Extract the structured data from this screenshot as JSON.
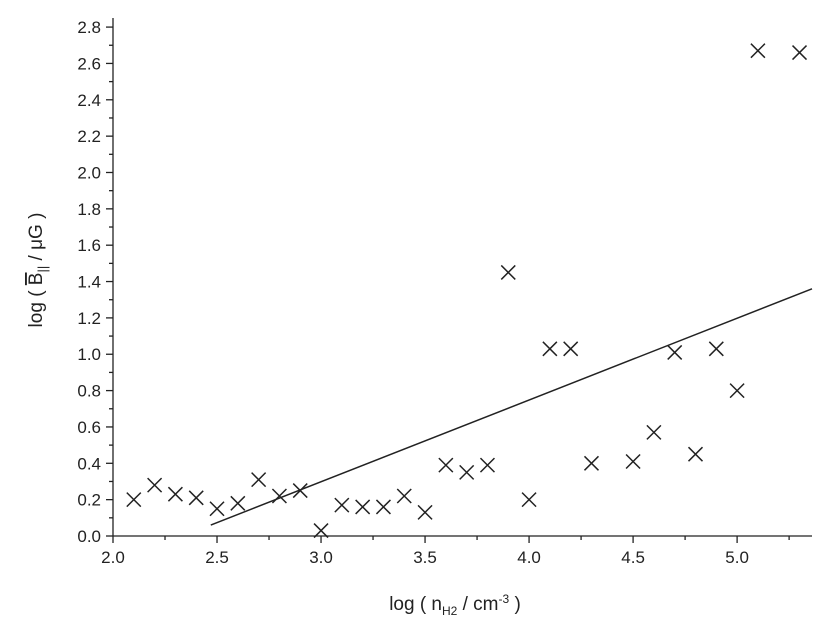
{
  "chart_data": {
    "type": "scatter",
    "xlabel": {
      "prefix": "log ( n",
      "sub": "H2",
      "middle": " / cm",
      "sup": "-3",
      "suffix": " )"
    },
    "ylabel": {
      "prefix": "log ( ",
      "main": "B",
      "sub": "||",
      "suffix": " / μG )"
    },
    "xlim": [
      2.0,
      5.36
    ],
    "ylim": [
      0,
      2.85
    ],
    "xticks": [
      {
        "value": 2.0,
        "label": "2.0"
      },
      {
        "value": 2.5,
        "label": "2.5"
      },
      {
        "value": 3.0,
        "label": "3.0"
      },
      {
        "value": 3.5,
        "label": "3.5"
      },
      {
        "value": 4.0,
        "label": "4.0"
      },
      {
        "value": 4.5,
        "label": "4.5"
      },
      {
        "value": 5.0,
        "label": "5.0"
      }
    ],
    "yticks": [
      {
        "value": 0.0,
        "label": "0.0"
      },
      {
        "value": 0.2,
        "label": "0.2"
      },
      {
        "value": 0.4,
        "label": "0.4"
      },
      {
        "value": 0.6,
        "label": "0.6"
      },
      {
        "value": 0.8,
        "label": "0.8"
      },
      {
        "value": 1.0,
        "label": "1.0"
      },
      {
        "value": 1.2,
        "label": "1.2"
      },
      {
        "value": 1.4,
        "label": "1.4"
      },
      {
        "value": 1.6,
        "label": "1.6"
      },
      {
        "value": 1.8,
        "label": "1.8"
      },
      {
        "value": 2.0,
        "label": "2.0"
      },
      {
        "value": 2.2,
        "label": "2.2"
      },
      {
        "value": 2.4,
        "label": "2.4"
      },
      {
        "value": 2.6,
        "label": "2.6"
      },
      {
        "value": 2.8,
        "label": "2.8"
      }
    ],
    "grid": false,
    "series": [
      {
        "color": "#222222",
        "marker": "x",
        "x": [
          2.1,
          2.2,
          2.3,
          2.4,
          2.5,
          2.6,
          2.7,
          2.8,
          2.9,
          3.0,
          3.1,
          3.2,
          3.3,
          3.4,
          3.5,
          3.6,
          3.7,
          3.8,
          3.9,
          4.0,
          4.1,
          4.2,
          4.3,
          4.5,
          4.6,
          4.7,
          4.8,
          4.9,
          5.0,
          5.1,
          5.3
        ],
        "values": [
          0.2,
          0.28,
          0.23,
          0.21,
          0.15,
          0.18,
          0.31,
          0.22,
          0.25,
          0.03,
          0.17,
          0.16,
          0.16,
          0.22,
          0.13,
          0.39,
          0.35,
          0.39,
          1.45,
          0.2,
          1.03,
          1.03,
          0.4,
          0.41,
          0.57,
          1.01,
          0.45,
          1.03,
          0.8,
          2.67,
          2.66
        ]
      }
    ],
    "fit_line": {
      "color": "#222222",
      "x": [
        2.47,
        5.36
      ],
      "values": [
        0.06,
        1.36
      ]
    }
  }
}
